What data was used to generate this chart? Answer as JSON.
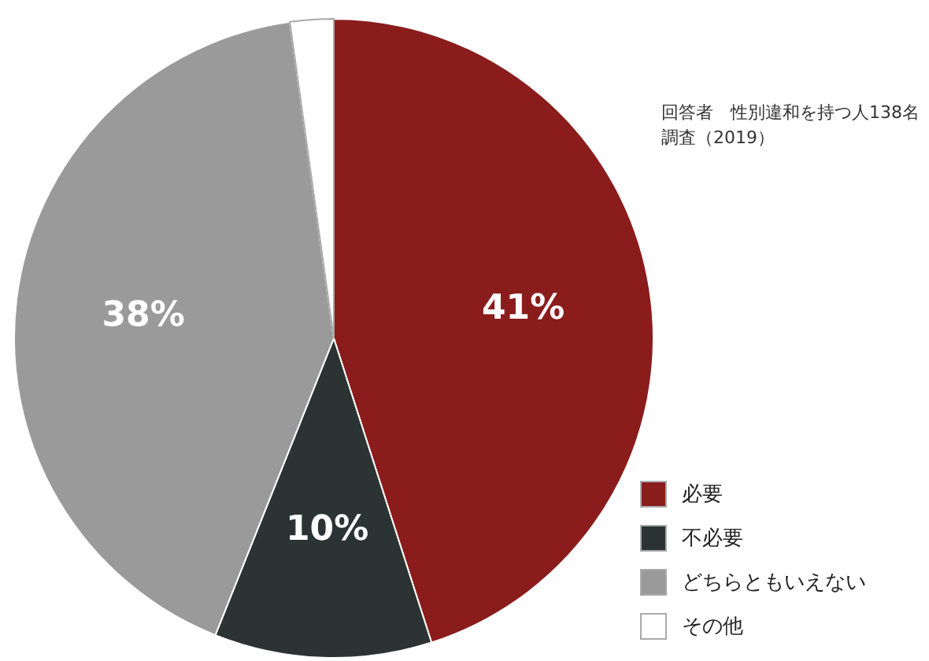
{
  "chart_data": {
    "type": "pie",
    "categories": [
      "必要",
      "不必要",
      "どちらともいえない",
      "その他"
    ],
    "values": [
      41,
      10,
      38,
      2
    ],
    "colors": [
      "#8b1c1c",
      "#2b3333",
      "#9a9a9a",
      "#ffffff"
    ],
    "value_labels": [
      "41%",
      "10%",
      "38%",
      null
    ],
    "annotations": [
      "回答者　性別違和を持つ人138名",
      "調査（2019）"
    ],
    "legend": "bottom right"
  }
}
